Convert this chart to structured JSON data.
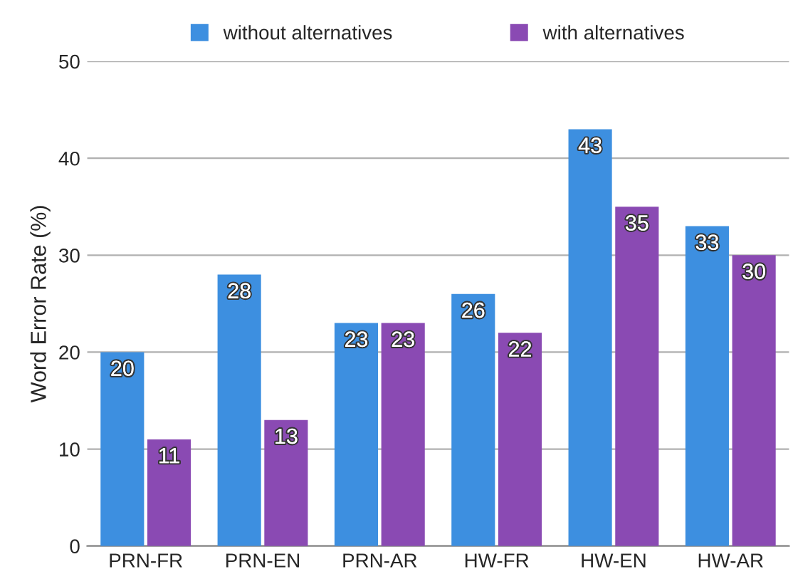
{
  "chart_data": {
    "type": "bar",
    "ylabel": "Word Error Rate (%)",
    "categories": [
      "PRN-FR",
      "PRN-EN",
      "PRN-AR",
      "HW-FR",
      "HW-EN",
      "HW-AR"
    ],
    "series": [
      {
        "name": "without alternatives",
        "color": "#3d8fe0",
        "values": [
          20,
          28,
          23,
          26,
          43,
          33
        ]
      },
      {
        "name": "with alternatives",
        "color": "#8a4ab3",
        "values": [
          11,
          13,
          23,
          22,
          35,
          30
        ]
      }
    ],
    "ylim": [
      0,
      50
    ],
    "yticks": [
      0,
      10,
      20,
      30,
      40,
      50
    ],
    "grid": "y",
    "legend": "top",
    "data_labels": true
  }
}
